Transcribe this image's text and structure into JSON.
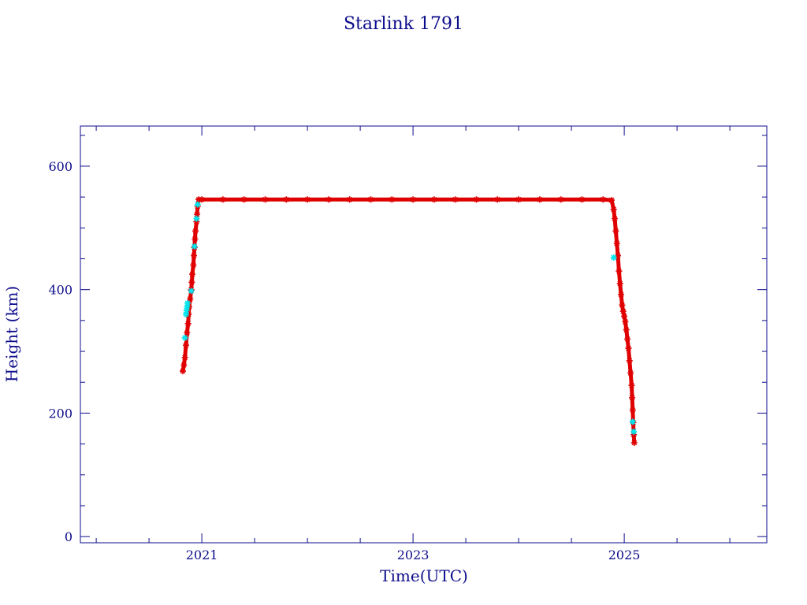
{
  "chart_data": {
    "type": "scatter",
    "title": "Starlink 1791",
    "xlabel": "Time(UTC)",
    "ylabel": "Height (km)",
    "xlim": [
      2019.85,
      2026.35
    ],
    "ylim": [
      -10,
      665
    ],
    "x_major_ticks": [
      2021,
      2023,
      2025
    ],
    "x_minor_ticks": [
      2020.0,
      2020.5,
      2021.5,
      2022.0,
      2022.5,
      2023.5,
      2024.0,
      2024.5,
      2025.5,
      2026.0
    ],
    "y_major_ticks": [
      0,
      200,
      400,
      600
    ],
    "y_minor_ticks": [
      50,
      100,
      150,
      250,
      300,
      350,
      450,
      500,
      550,
      650
    ],
    "grid": false,
    "legend": "none",
    "colors": {
      "axis": "#0d0d8c",
      "main": "#e00000",
      "highlight": "#00e5ee"
    },
    "series": [
      {
        "color": "main",
        "points": [
          [
            2020.82,
            268
          ],
          [
            2020.83,
            278
          ],
          [
            2020.84,
            290
          ],
          [
            2020.85,
            310
          ],
          [
            2020.86,
            330
          ],
          [
            2020.87,
            345
          ],
          [
            2020.875,
            360
          ],
          [
            2020.88,
            372
          ],
          [
            2020.89,
            385
          ],
          [
            2020.9,
            400
          ],
          [
            2020.905,
            412
          ],
          [
            2020.91,
            425
          ],
          [
            2020.92,
            440
          ],
          [
            2020.925,
            455
          ],
          [
            2020.93,
            468
          ],
          [
            2020.935,
            482
          ],
          [
            2020.94,
            495
          ],
          [
            2020.95,
            510
          ],
          [
            2020.955,
            522
          ],
          [
            2020.96,
            535
          ],
          [
            2020.97,
            546
          ],
          [
            2021.0,
            546
          ],
          [
            2021.2,
            546
          ],
          [
            2021.4,
            546
          ],
          [
            2021.6,
            546
          ],
          [
            2021.8,
            546
          ],
          [
            2022.0,
            546
          ],
          [
            2022.2,
            546
          ],
          [
            2022.4,
            546
          ],
          [
            2022.6,
            546
          ],
          [
            2022.8,
            546
          ],
          [
            2023.0,
            546
          ],
          [
            2023.2,
            546
          ],
          [
            2023.4,
            546
          ],
          [
            2023.6,
            546
          ],
          [
            2023.8,
            546
          ],
          [
            2024.0,
            546
          ],
          [
            2024.2,
            546
          ],
          [
            2024.4,
            546
          ],
          [
            2024.6,
            546
          ],
          [
            2024.8,
            546
          ],
          [
            2024.88,
            545
          ],
          [
            2024.9,
            530
          ],
          [
            2024.91,
            515
          ],
          [
            2024.92,
            495
          ],
          [
            2024.93,
            475
          ],
          [
            2024.94,
            455
          ],
          [
            2024.95,
            430
          ],
          [
            2024.96,
            410
          ],
          [
            2024.97,
            392
          ],
          [
            2024.98,
            375
          ],
          [
            2024.99,
            365
          ],
          [
            2025.0,
            357
          ],
          [
            2025.01,
            348
          ],
          [
            2025.02,
            335
          ],
          [
            2025.03,
            320
          ],
          [
            2025.04,
            305
          ],
          [
            2025.05,
            285
          ],
          [
            2025.06,
            265
          ],
          [
            2025.07,
            245
          ],
          [
            2025.075,
            225
          ],
          [
            2025.08,
            205
          ],
          [
            2025.085,
            185
          ],
          [
            2025.09,
            165
          ],
          [
            2025.095,
            152
          ]
        ]
      },
      {
        "color": "highlight",
        "points": [
          [
            2020.84,
            322
          ],
          [
            2020.85,
            360
          ],
          [
            2020.855,
            366
          ],
          [
            2020.86,
            372
          ],
          [
            2020.865,
            378
          ],
          [
            2020.9,
            398
          ],
          [
            2020.93,
            470
          ],
          [
            2020.95,
            515
          ],
          [
            2020.96,
            538
          ],
          [
            2024.9,
            452
          ],
          [
            2025.08,
            186
          ],
          [
            2025.09,
            170
          ]
        ]
      }
    ]
  }
}
